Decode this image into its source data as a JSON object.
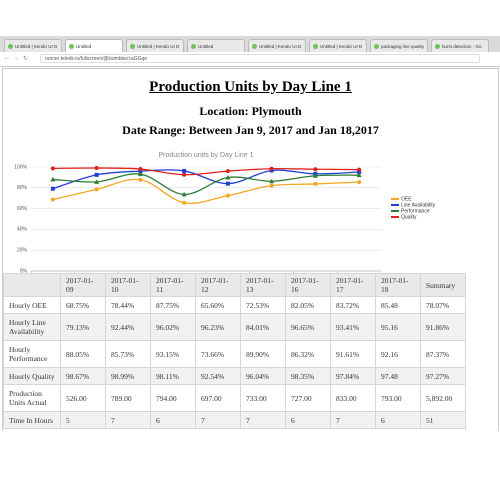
{
  "browser": {
    "tabs": [
      "Untitled | Kendo UI D",
      "Untitled",
      "Untitled | Kendo UI D",
      "Untitled",
      "Untitled | Kendo UI D",
      "Untitled | Kendo UI D",
      "packaging line quality",
      "burst detection - Go"
    ],
    "url": "runner.telerik.io/fullscreen/@ksimbbe/caGGqe"
  },
  "header": {
    "title": "Production Units by Day Line 1",
    "location": "Location: Plymouth",
    "date_range": "Date Range: Between Jan 9, 2017 and Jan 18,2017"
  },
  "chart_data": {
    "type": "line",
    "title": "Production units by Day Line 1",
    "categories": [
      null,
      null,
      null,
      null,
      null,
      null,
      null,
      null
    ],
    "ylim": [
      0,
      100
    ],
    "yticks": [
      {
        "value": 0,
        "label": "0%"
      },
      {
        "value": 20,
        "label": "20%"
      },
      {
        "value": 40,
        "label": "40%"
      },
      {
        "value": 60,
        "label": "60%"
      },
      {
        "value": 80,
        "label": "80%"
      },
      {
        "value": 100,
        "label": "100%"
      }
    ],
    "grid": true,
    "legend": "right",
    "series": [
      {
        "name": "OEE",
        "color": "#f5a623",
        "values": [
          68.75,
          78.44,
          87.75,
          65.6,
          72.53,
          82.05,
          83.72,
          85.48
        ]
      },
      {
        "name": "Line Availability",
        "color": "#1f3fd6",
        "values": [
          79.13,
          92.44,
          96.02,
          96.23,
          84.01,
          96.65,
          93.41,
          95.16
        ]
      },
      {
        "name": "Performance",
        "color": "#2e7d32",
        "values": [
          88.05,
          85.73,
          93.15,
          73.66,
          89.9,
          86.32,
          91.61,
          92.16
        ]
      },
      {
        "name": "Quality",
        "color": "#e0201b",
        "values": [
          98.67,
          98.99,
          98.11,
          92.54,
          96.04,
          98.35,
          97.84,
          97.48
        ]
      }
    ]
  },
  "table": {
    "header": [
      "2017-01-09",
      "2017-01-10",
      "2017-01-11",
      "2017-01-12",
      "2017-01-13",
      "2017-01-16",
      "2017-01-17",
      "2017-01-18",
      "Summary"
    ],
    "rows": [
      [
        "Hourly OEE",
        "68.75%",
        "78.44%",
        "87.75%",
        "65.60%",
        "72.53%",
        "82.05%",
        "83.72%",
        "85.48",
        "78.07%"
      ],
      [
        "Hourly Line Availability",
        "79.13%",
        "92.44%",
        "96.02%",
        "96.23%",
        "84.01%",
        "96.65%",
        "93.41%",
        "95.16",
        "91.86%"
      ],
      [
        "Hourly Performance",
        "88.05%",
        "85.73%",
        "93.15%",
        "73.66%",
        "89.90%",
        "86.32%",
        "91.61%",
        "92.16",
        "87.37%"
      ],
      [
        "Hourly Quality",
        "98.67%",
        "98.99%",
        "98.11%",
        "92.54%",
        "96.04%",
        "98.35%",
        "97.84%",
        "97.48",
        "97.27%"
      ],
      [
        "Production Units Actual",
        "526.00",
        "789.00",
        "794.00",
        "697.00",
        "733.00",
        "727.00",
        "833.00",
        "793.00",
        "5,892.00"
      ],
      [
        "Time In Hours",
        "5",
        "7",
        "6",
        "7",
        "7",
        "6",
        "7",
        "6",
        "51"
      ]
    ]
  }
}
